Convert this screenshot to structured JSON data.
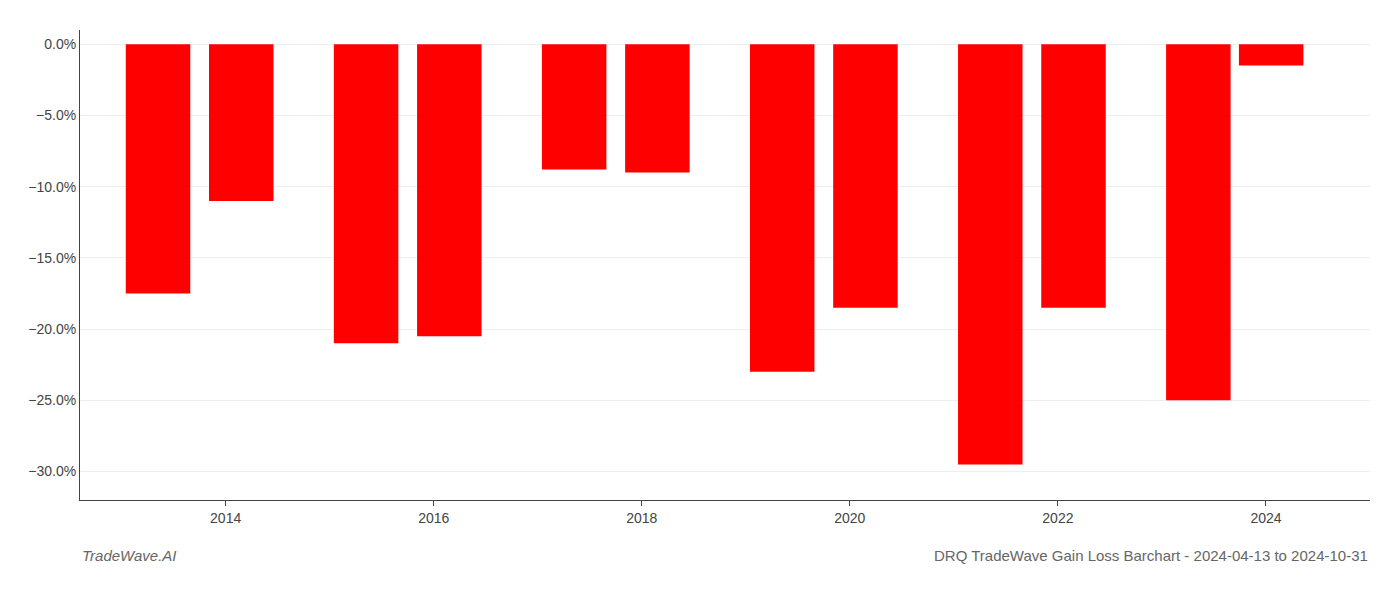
{
  "chart_data": {
    "type": "bar",
    "title": "DRQ TradeWave Gain Loss Barchart - 2024-04-13 to 2024-10-31",
    "annotations": [
      "TradeWave.AI"
    ],
    "x": [
      2013.35,
      2014.15,
      2015.35,
      2016.15,
      2017.35,
      2018.15,
      2019.35,
      2020.15,
      2021.35,
      2022.15,
      2023.35,
      2024.05
    ],
    "values": [
      -17.5,
      -11.0,
      -21.0,
      -20.5,
      -8.8,
      -9.0,
      -23.0,
      -18.5,
      -29.5,
      -18.5,
      -25.0,
      -1.5
    ],
    "color": "#ff0000",
    "xlim": [
      2012.6,
      2025.0
    ],
    "xticks": [
      2014,
      2016,
      2018,
      2020,
      2022,
      2024
    ],
    "ylim": [
      -32,
      1.0
    ],
    "yticks": [
      {
        "value": 0.0,
        "label": "0.0%"
      },
      {
        "value": -5.0,
        "label": "−5.0%"
      },
      {
        "value": -10.0,
        "label": "−10.0%"
      },
      {
        "value": -15.0,
        "label": "−15.0%"
      },
      {
        "value": -20.0,
        "label": "−20.0%"
      },
      {
        "value": -25.0,
        "label": "−25.0%"
      },
      {
        "value": -30.0,
        "label": "−30.0%"
      }
    ],
    "grid": true
  }
}
